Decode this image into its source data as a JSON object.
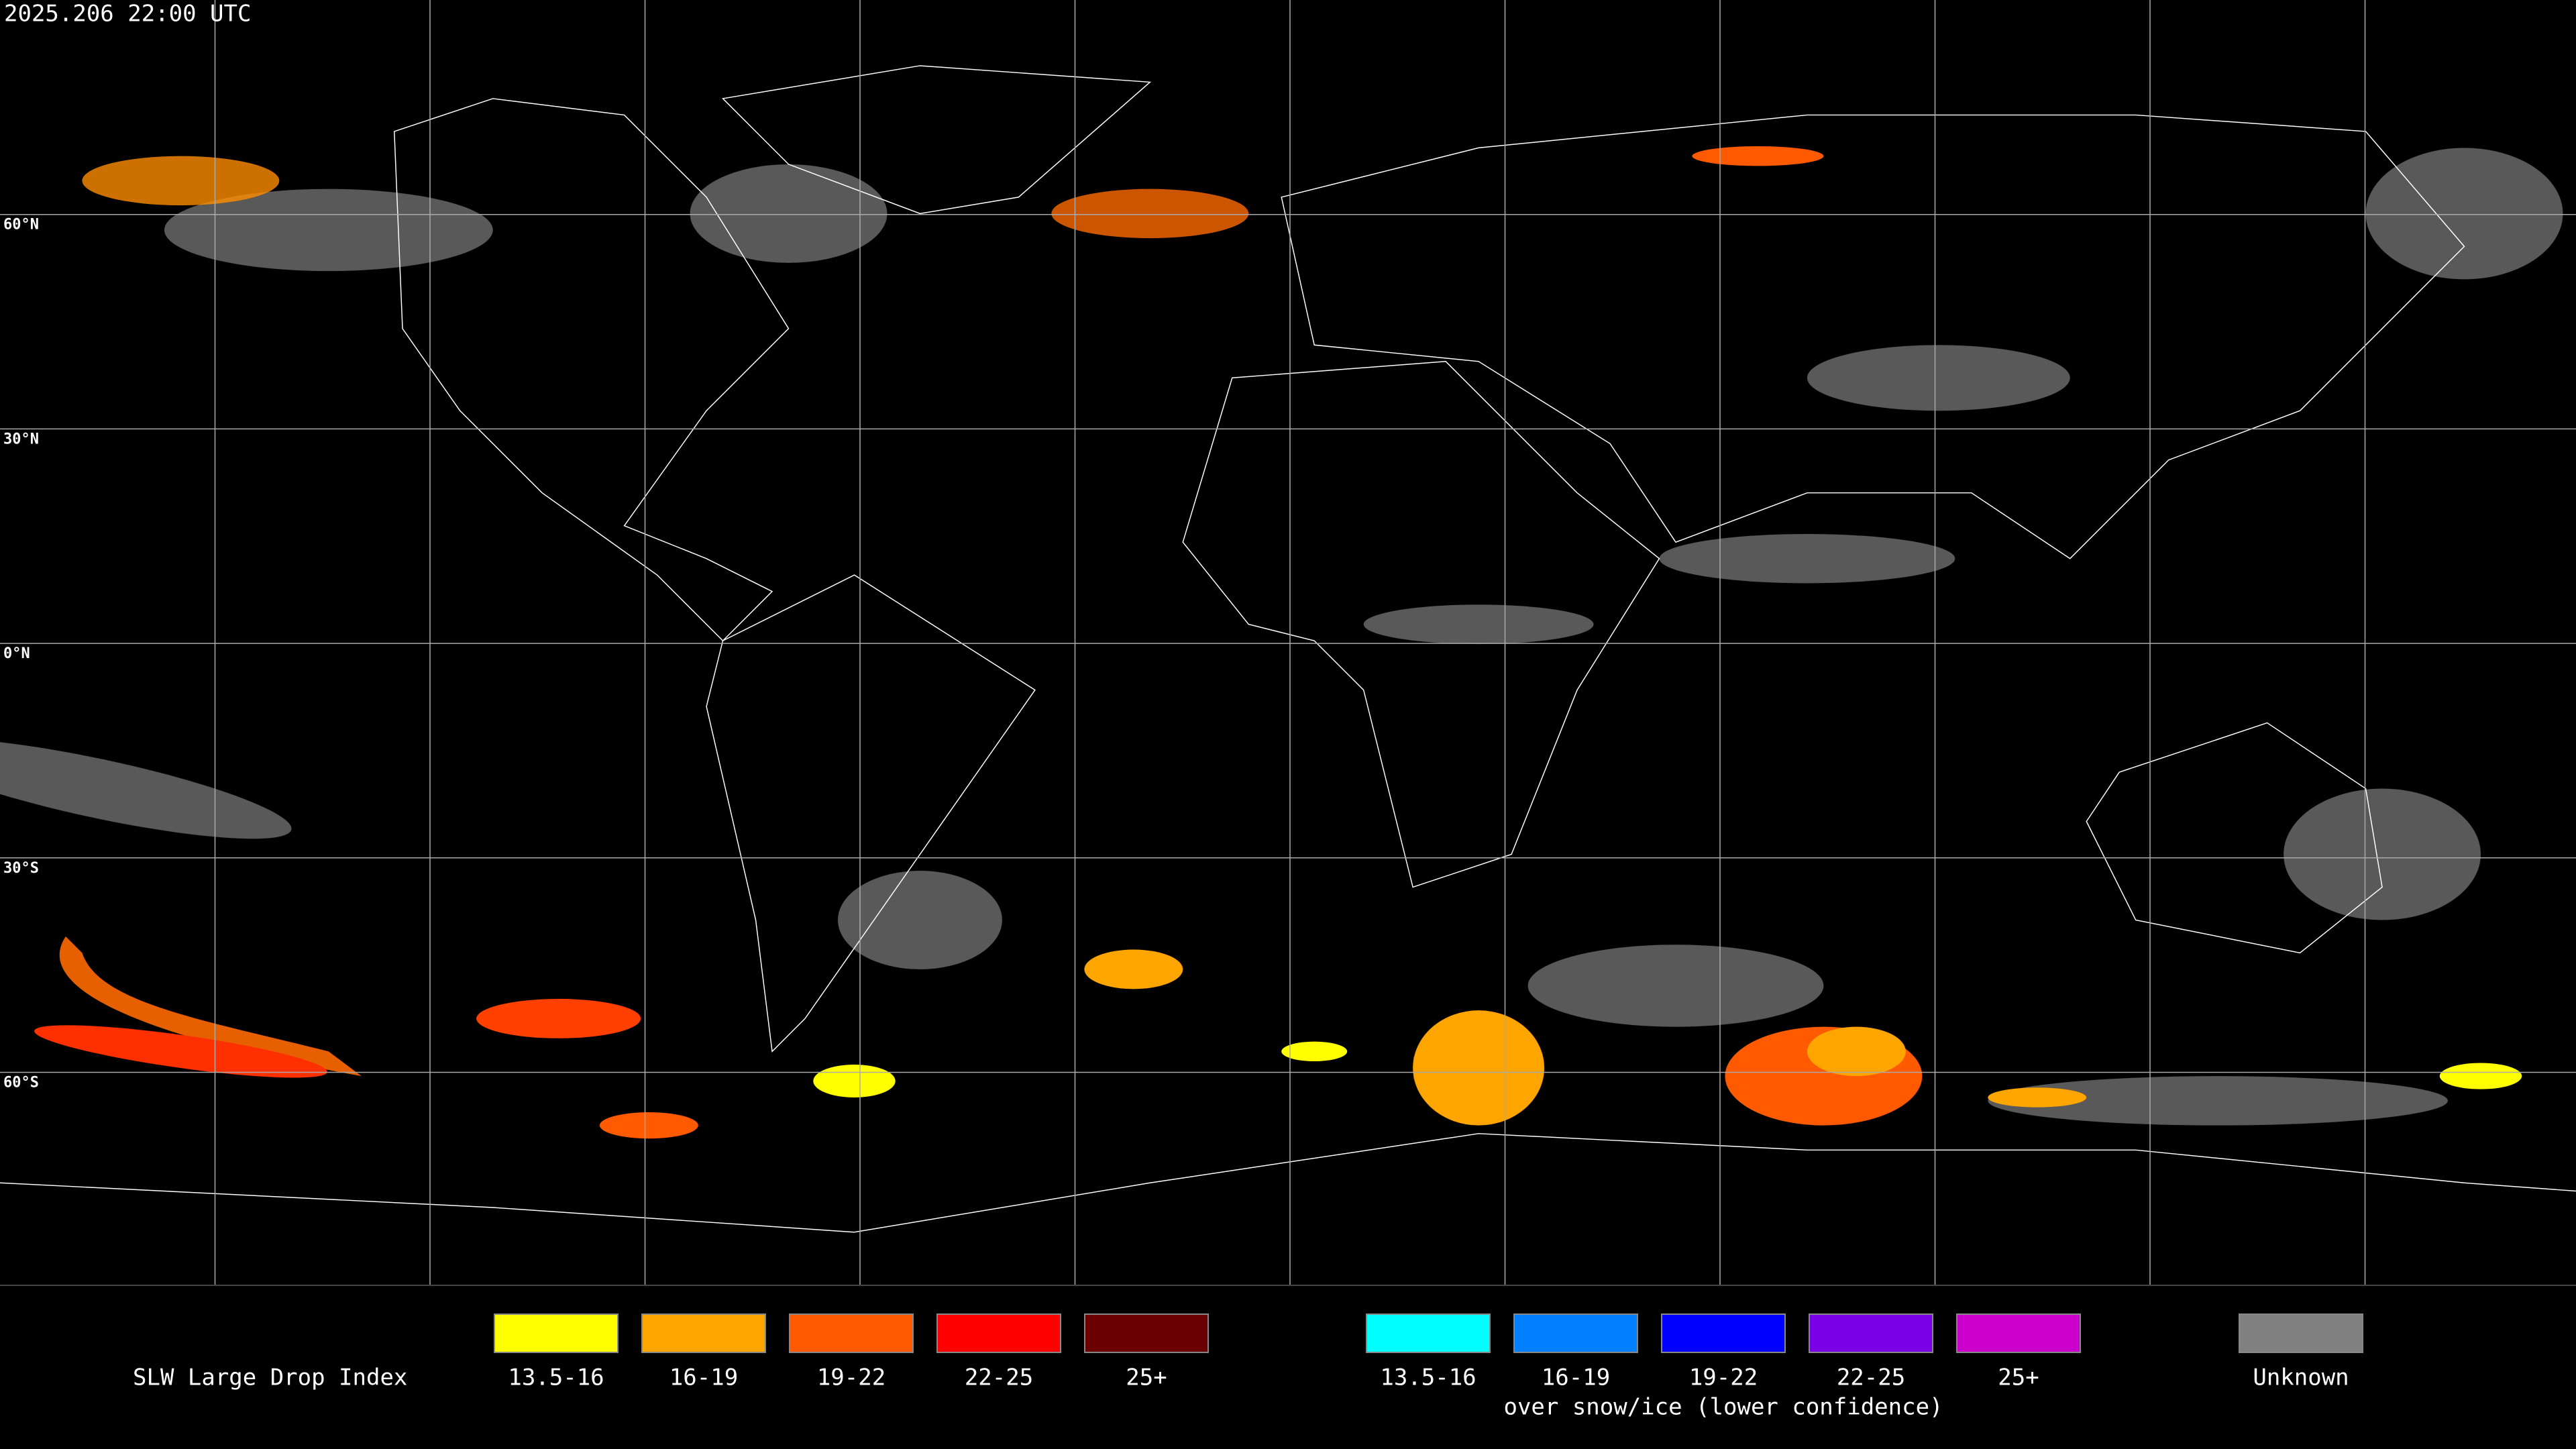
{
  "timestamp": "2025.206 22:00 UTC",
  "latitude_labels": [
    "60°N",
    "30°N",
    "0°N",
    "30°S",
    "60°S"
  ],
  "legend": {
    "title": "SLW Large Drop Index",
    "groups": [
      {
        "items": [
          {
            "label": "13.5-16",
            "color": "#ffff00"
          },
          {
            "label": "16-19",
            "color": "#ffa500"
          },
          {
            "label": "19-22",
            "color": "#ff5a00"
          },
          {
            "label": "22-25",
            "color": "#ff0000"
          },
          {
            "label": "25+",
            "color": "#6b0000"
          }
        ]
      },
      {
        "items": [
          {
            "label": "13.5-16",
            "color": "#00ffff"
          },
          {
            "label": "16-19",
            "color": "#0080ff"
          },
          {
            "label": "19-22",
            "color": "#0000ff"
          },
          {
            "label": "22-25",
            "color": "#7a00e6"
          },
          {
            "label": "25+",
            "color": "#cc00cc"
          }
        ],
        "note": "over snow/ice (lower confidence)"
      }
    ],
    "unknown": {
      "label": "Unknown",
      "color": "#808080"
    }
  }
}
